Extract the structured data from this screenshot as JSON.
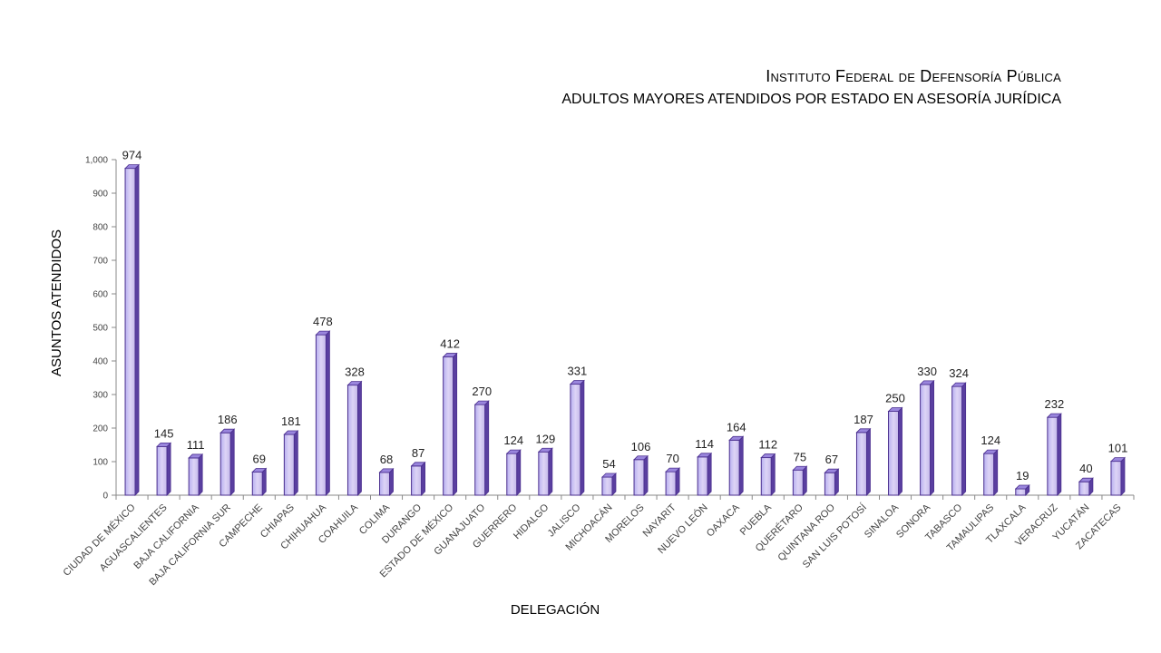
{
  "chart_data": {
    "type": "bar",
    "title": "Instituto Federal de Defensoría Pública",
    "subtitle": "ADULTOS MAYORES ATENDIDOS POR ESTADO EN ASESORÍA JURÍDICA",
    "xlabel": "DELEGACIÓN",
    "ylabel": "ASUNTOS ATENDIDOS",
    "ylim": [
      0,
      1000
    ],
    "yticks": [
      "0",
      "100",
      "200",
      "300",
      "400",
      "500",
      "600",
      "700",
      "800",
      "900",
      "1,000"
    ],
    "categories": [
      "CIUDAD DE MÉXICO",
      "AGUASCALIENTES",
      "BAJA CALIFORNIA",
      "BAJA CALIFORNIA SUR",
      "CAMPECHE",
      "CHIAPAS",
      "CHIHUAHUA",
      "COAHUILA",
      "COLIMA",
      "DURANGO",
      "ESTADO DE MÉXICO",
      "GUANAJUATO",
      "GUERRERO",
      "HIDALGO",
      "JALISCO",
      "MICHOACÁN",
      "MORELOS",
      "NAYARIT",
      "NUEVO LEÓN",
      "OAXACA",
      "PUEBLA",
      "QUERÉTARO",
      "QUINTANA ROO",
      "SAN LUIS POTOSÍ",
      "SINALOA",
      "SONORA",
      "TABASCO",
      "TAMAULIPAS",
      "TLAXCALA",
      "VERACRUZ",
      "YUCATÁN",
      "ZACATECAS"
    ],
    "values": [
      974,
      145,
      111,
      186,
      69,
      181,
      478,
      328,
      68,
      87,
      412,
      270,
      124,
      129,
      331,
      54,
      106,
      70,
      114,
      164,
      112,
      75,
      67,
      187,
      250,
      330,
      324,
      124,
      19,
      232,
      40,
      101
    ],
    "grid": false,
    "legend": "none",
    "colors": {
      "bar_front": "#c9c3f2",
      "bar_side": "#5a3fa0",
      "bar_top": "#9a86dd",
      "bar_outline": "#4b2f8f",
      "axis": "#888888"
    }
  }
}
